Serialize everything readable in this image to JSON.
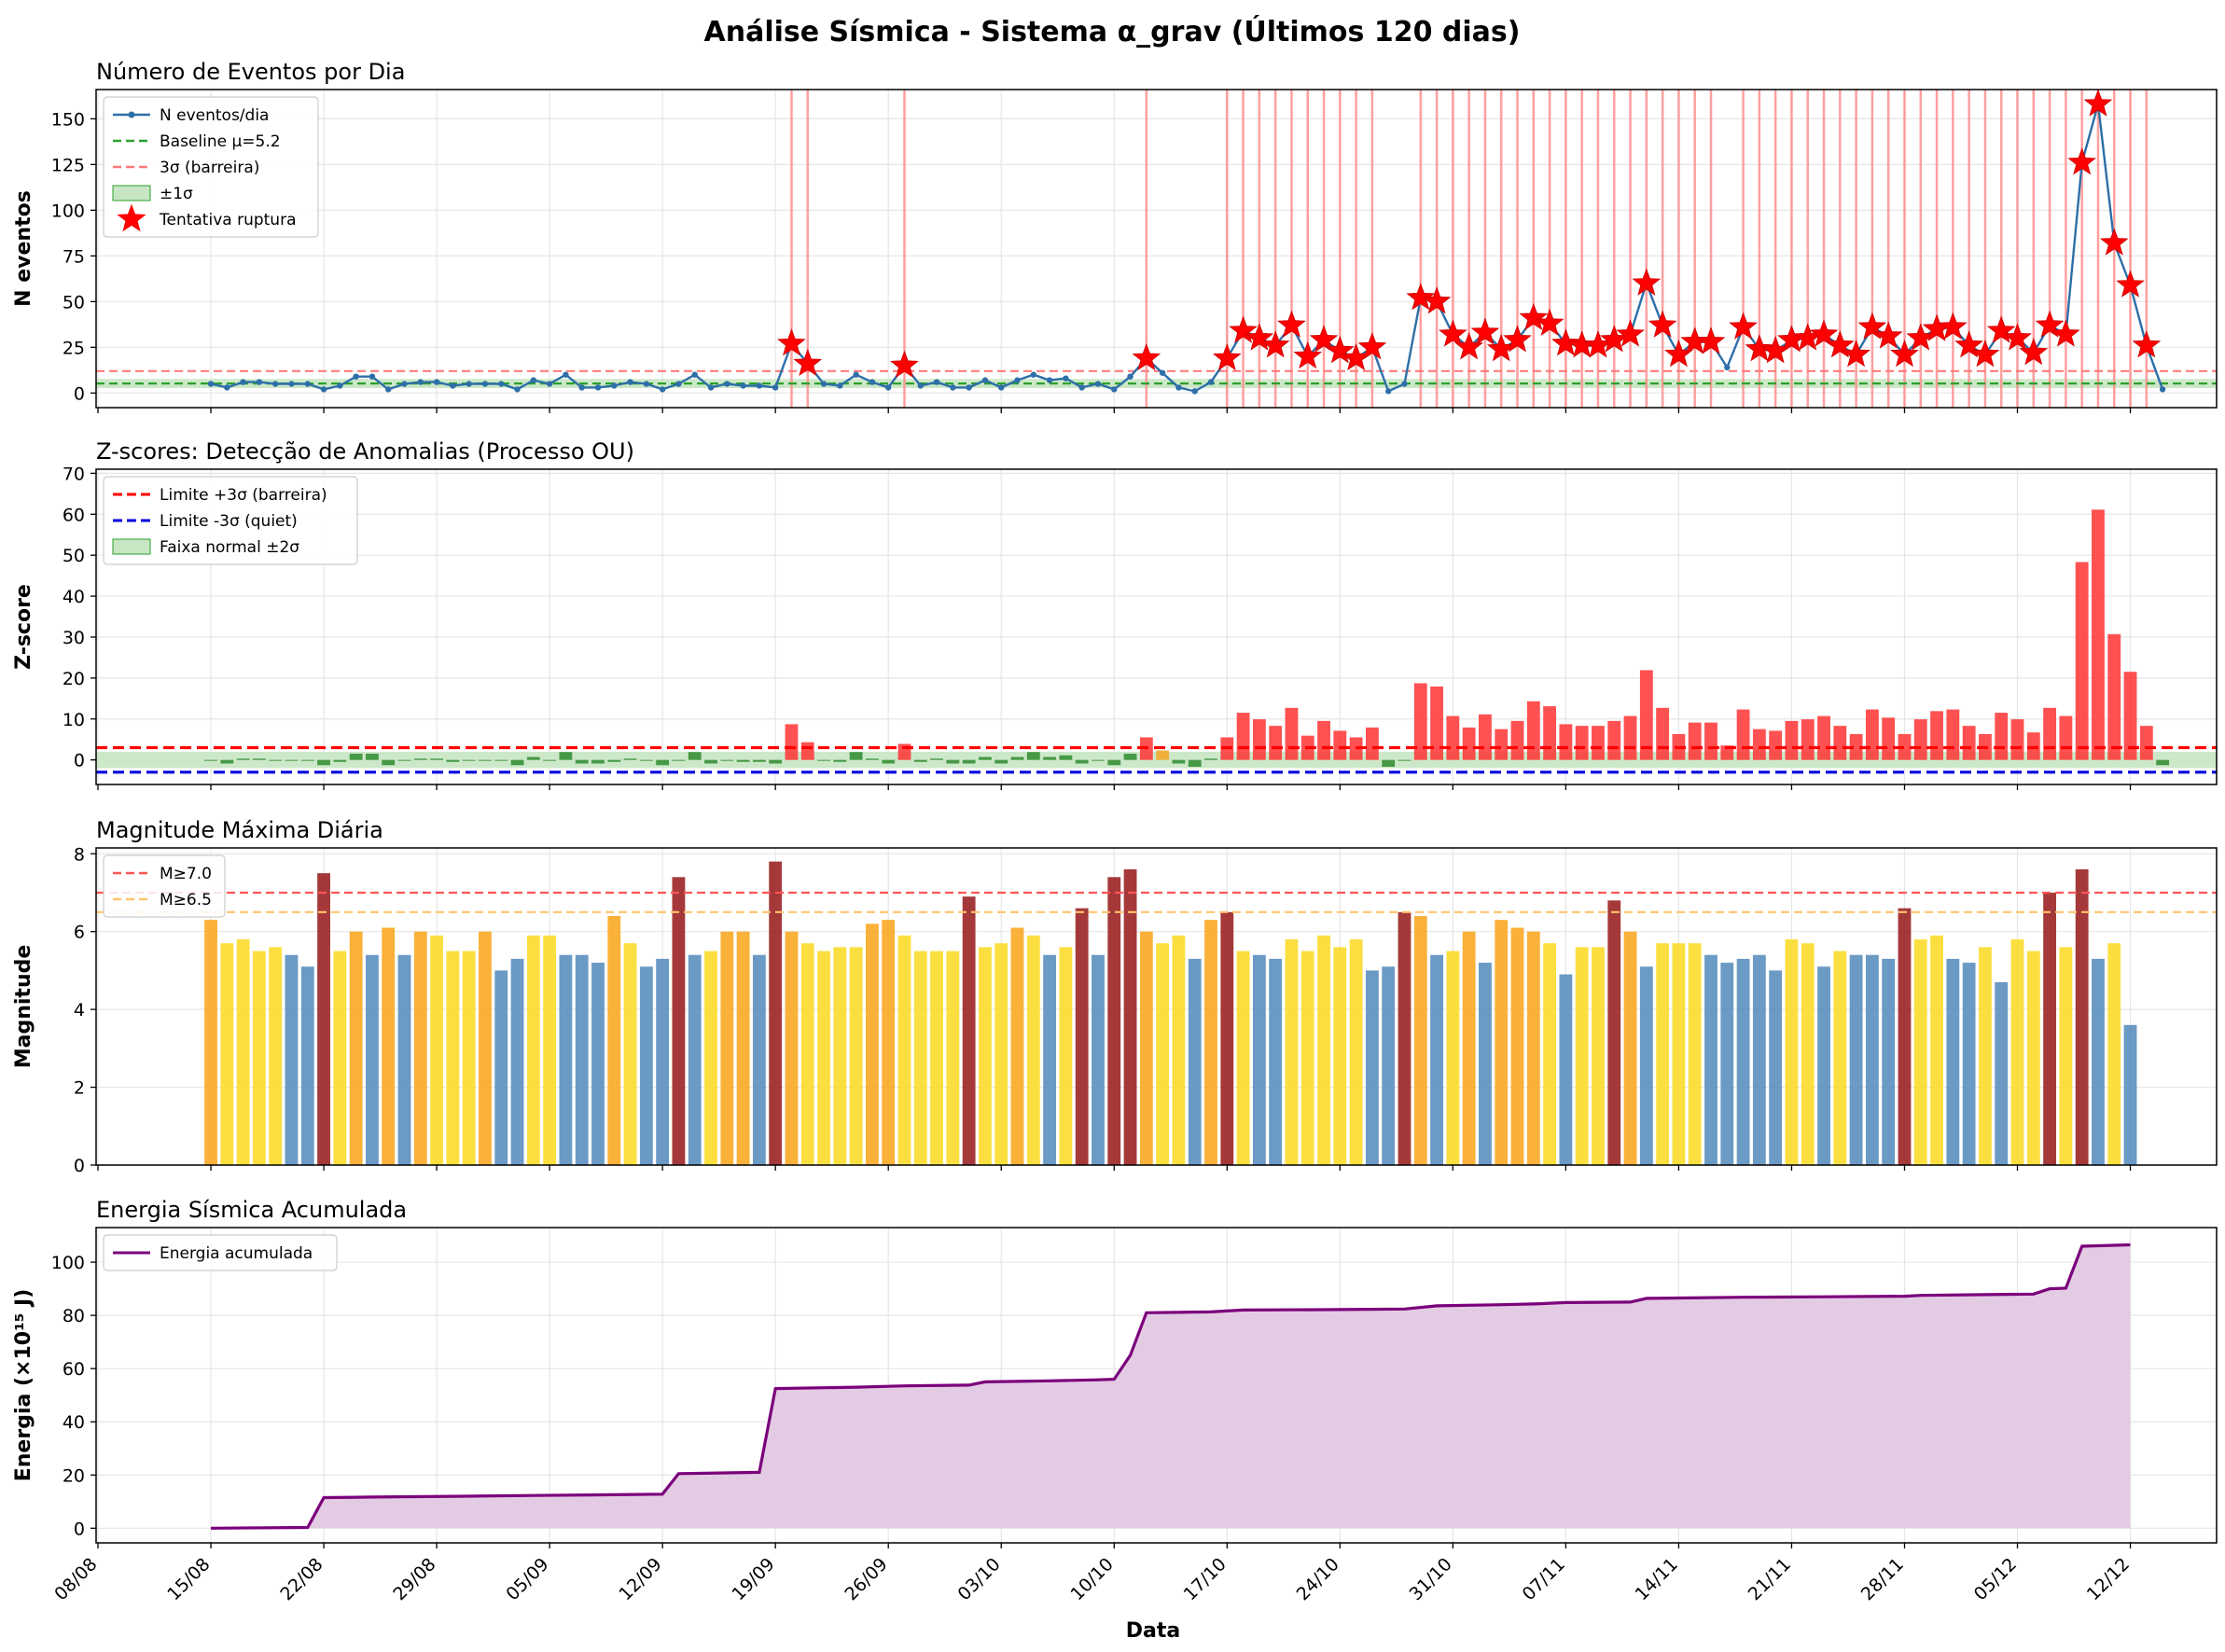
{
  "figure": {
    "suptitle": "Análise Sísmica - Sistema α_grav (Últimos 120 dias)",
    "xlabel": "Data",
    "x_ticks": [
      "08/08",
      "15/08",
      "22/08",
      "29/08",
      "05/09",
      "12/09",
      "19/09",
      "26/09",
      "03/10",
      "10/10",
      "17/10",
      "24/10",
      "31/10",
      "07/11",
      "14/11",
      "21/11",
      "28/11",
      "05/12",
      "12/12"
    ]
  },
  "chart_data": [
    {
      "type": "line",
      "title": "Número de Eventos por Dia",
      "ylabel": "N eventos",
      "ylim": [
        -8,
        166
      ],
      "yticks": [
        0,
        25,
        50,
        75,
        100,
        125,
        150
      ],
      "x_start_day": 7,
      "values": [
        5,
        3,
        6,
        6,
        5,
        5,
        5,
        2,
        4,
        9,
        9,
        2,
        5,
        6,
        6,
        4,
        5,
        5,
        5,
        2,
        7,
        5,
        10,
        3,
        3,
        4,
        6,
        5,
        2,
        5,
        10,
        3,
        5,
        4,
        4,
        3,
        27,
        16,
        5,
        4,
        10,
        6,
        3,
        15,
        4,
        6,
        3,
        3,
        7,
        3,
        7,
        10,
        7,
        8,
        3,
        5,
        2,
        9,
        19,
        11,
        3,
        1,
        6,
        19,
        34,
        30,
        26,
        37,
        20,
        29,
        23,
        19,
        25,
        1,
        5,
        52,
        50,
        32,
        25,
        33,
        24,
        29,
        41,
        38,
        27,
        26,
        26,
        29,
        32,
        60,
        37,
        21,
        28,
        28,
        14,
        36,
        24,
        23,
        29,
        30,
        32,
        26,
        21,
        36,
        31,
        21,
        30,
        35,
        36,
        26,
        21,
        34,
        30,
        22,
        37,
        32,
        126,
        158,
        82,
        59,
        26,
        2
      ],
      "anomaly_threshold": 15,
      "baseline": 5.2,
      "barrier": 12,
      "band": [
        2.7,
        7.7
      ],
      "legend": {
        "position": "upper-left",
        "entries": [
          "N eventos/dia",
          "Baseline μ=5.2",
          "3σ (barreira)",
          "±1σ",
          "Tentativa ruptura"
        ]
      },
      "colors": {
        "line": "#2e6fa8",
        "baseline": "#2ca02c",
        "barrier": "#ff7b7b",
        "band": "#c8e6c3",
        "star": "#ff0000",
        "vline": "#ff8080"
      }
    },
    {
      "type": "bar",
      "title": "Z-scores: Detecção de Anomalias (Processo OU)",
      "ylabel": "Z-score",
      "ylim": [
        -6,
        71
      ],
      "yticks": [
        0,
        10,
        20,
        30,
        40,
        50,
        60,
        70
      ],
      "limit_upper": 3,
      "limit_lower": -3,
      "band": [
        -2,
        2
      ],
      "legend": {
        "position": "upper-left",
        "entries": [
          "Limite +3σ (barreira)",
          "Limite -3σ (quiet)",
          "Faixa normal ±2σ"
        ]
      },
      "color_rules": {
        "above_3": "#ff3333",
        "between_2_3": "#f5a623",
        "normal": "#2e8b2e"
      },
      "colors": {
        "upper": "#ff0000",
        "lower": "#0000dd",
        "band": "#c8e6c3"
      }
    },
    {
      "type": "bar",
      "title": "Magnitude Máxima Diária",
      "ylabel": "Magnitude",
      "ylim": [
        0,
        8.15
      ],
      "yticks": [
        0,
        2,
        4,
        6,
        8
      ],
      "values": [
        6.3,
        5.7,
        5.8,
        5.5,
        5.6,
        5.4,
        5.1,
        7.5,
        5.5,
        6.0,
        5.4,
        6.1,
        5.4,
        6.0,
        5.9,
        5.5,
        5.5,
        6.0,
        5.0,
        5.3,
        5.9,
        5.9,
        5.4,
        5.4,
        5.2,
        6.4,
        5.7,
        5.1,
        5.3,
        7.4,
        5.4,
        5.5,
        6.0,
        6.0,
        5.4,
        7.8,
        6.0,
        5.7,
        5.5,
        5.6,
        5.6,
        6.2,
        6.3,
        5.9,
        5.5,
        5.5,
        5.5,
        6.9,
        5.6,
        5.7,
        6.1,
        5.9,
        5.4,
        5.6,
        6.6,
        5.4,
        7.4,
        7.6,
        6.0,
        5.7,
        5.9,
        5.3,
        6.3,
        6.5,
        5.5,
        5.4,
        5.3,
        5.8,
        5.5,
        5.9,
        5.6,
        5.8,
        5.0,
        5.1,
        6.5,
        6.4,
        5.4,
        5.5,
        6.0,
        5.2,
        6.3,
        6.1,
        6.0,
        5.7,
        4.9,
        5.6,
        5.6,
        6.8,
        6.0,
        5.1,
        5.7,
        5.7,
        5.7,
        5.4,
        5.2,
        5.3,
        5.4,
        5.0,
        5.8,
        5.7,
        5.1,
        5.5,
        5.4,
        5.4,
        5.3,
        6.6,
        5.8,
        5.9,
        5.3,
        5.2,
        5.6,
        4.7,
        5.8,
        5.5,
        7.0,
        5.6,
        7.6,
        5.3,
        5.7,
        3.6
      ],
      "ref_lines": [
        {
          "label": "M≥7.0",
          "value": 7.0,
          "color": "#ff5555"
        },
        {
          "label": "M≥6.5",
          "value": 6.5,
          "color": "#ffc46b"
        }
      ],
      "legend": {
        "position": "upper-left",
        "entries": [
          "M≥7.0",
          "M≥6.5"
        ]
      },
      "color_rules": {
        "ge_6_5": "#9b2323",
        "ge_6_0": "#f9a825",
        "ge_5_5": "#fbdb2b",
        "lt_5_5": "#5b8fbf"
      }
    },
    {
      "type": "area",
      "title": "Energia Sísmica Acumulada",
      "ylabel": "Energia (×10¹⁵ J)",
      "ylim": [
        -5.5,
        113
      ],
      "yticks": [
        0,
        20,
        40,
        60,
        80,
        100
      ],
      "points": [
        [
          0,
          0
        ],
        [
          6,
          0.3
        ],
        [
          7,
          11.5
        ],
        [
          10,
          11.7
        ],
        [
          15,
          12.0
        ],
        [
          20,
          12.3
        ],
        [
          25,
          12.6
        ],
        [
          28,
          12.8
        ],
        [
          29,
          20.5
        ],
        [
          34,
          21.0
        ],
        [
          35,
          52.5
        ],
        [
          40,
          53.0
        ],
        [
          43,
          53.5
        ],
        [
          47,
          53.8
        ],
        [
          48,
          55.0
        ],
        [
          52,
          55.4
        ],
        [
          55,
          55.8
        ],
        [
          56,
          56.0
        ],
        [
          57,
          65.0
        ],
        [
          58,
          81.0
        ],
        [
          62,
          81.3
        ],
        [
          64,
          82.0
        ],
        [
          70,
          82.2
        ],
        [
          74,
          82.4
        ],
        [
          76,
          83.6
        ],
        [
          80,
          84.0
        ],
        [
          82,
          84.3
        ],
        [
          84,
          84.8
        ],
        [
          88,
          85.0
        ],
        [
          89,
          86.4
        ],
        [
          95,
          86.8
        ],
        [
          100,
          87.0
        ],
        [
          105,
          87.2
        ],
        [
          106,
          87.5
        ],
        [
          110,
          87.8
        ],
        [
          113,
          88.0
        ],
        [
          114,
          90.0
        ],
        [
          115,
          90.2
        ],
        [
          116,
          106.0
        ],
        [
          119,
          106.5
        ]
      ],
      "legend": {
        "position": "upper-left",
        "entries": [
          "Energia acumulada"
        ]
      },
      "colors": {
        "line": "#7b007b",
        "fill": "#e4cbe4"
      }
    }
  ]
}
